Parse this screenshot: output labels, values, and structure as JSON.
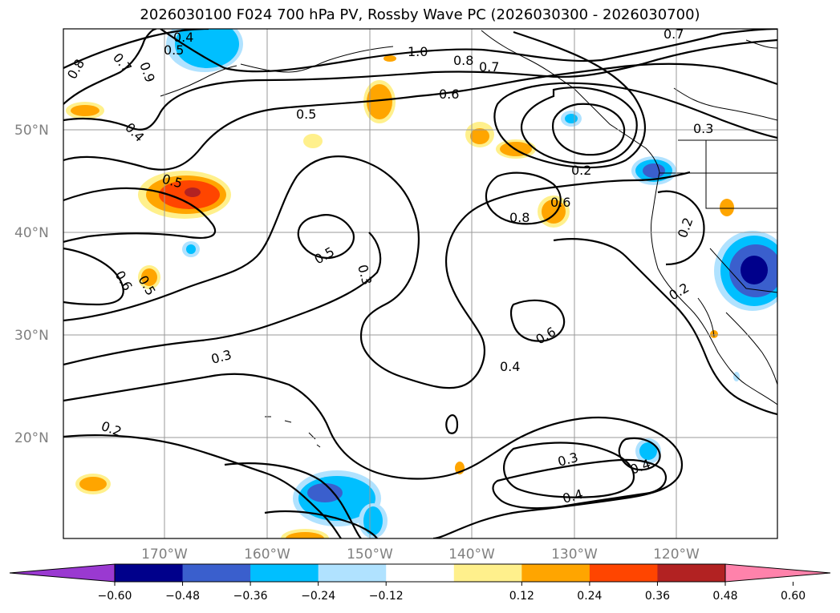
{
  "title": "2026030100 F024 700 hPa PV, Rossby Wave PC (2026030300 - 2026030700)",
  "map": {
    "lat_labels": [
      "50°N",
      "40°N",
      "30°N",
      "20°N"
    ],
    "lon_labels": [
      "170°W",
      "160°W",
      "150°W",
      "140°W",
      "130°W",
      "120°W"
    ],
    "contour_labels": [
      "0.4",
      "0.5",
      "0.7",
      "0.9",
      "0.8",
      "0.4",
      "1.0",
      "0.8",
      "0.7",
      "0.6",
      "0.5",
      "0.7",
      "0.3",
      "0.2",
      "0.5",
      "0.8",
      "0.6",
      "0.5",
      "0.3",
      "0.6",
      "0.5",
      "0.2",
      "0.2",
      "0.6",
      "0.4",
      "0.3",
      "0.2",
      "0.3",
      "0.4",
      "0.4"
    ]
  },
  "colorbar": {
    "tick_labels": [
      "−0.60",
      "−0.48",
      "−0.36",
      "−0.24",
      "−0.12",
      "0.12",
      "0.24",
      "0.36",
      "0.48",
      "0.60"
    ],
    "colors": [
      "#9a39d1",
      "#00008b",
      "#3a5fcd",
      "#00bfff",
      "#b0e2ff",
      "#ffffff",
      "#fff08c",
      "#ffa500",
      "#ff4500",
      "#b22222",
      "#ff82ab"
    ]
  }
}
